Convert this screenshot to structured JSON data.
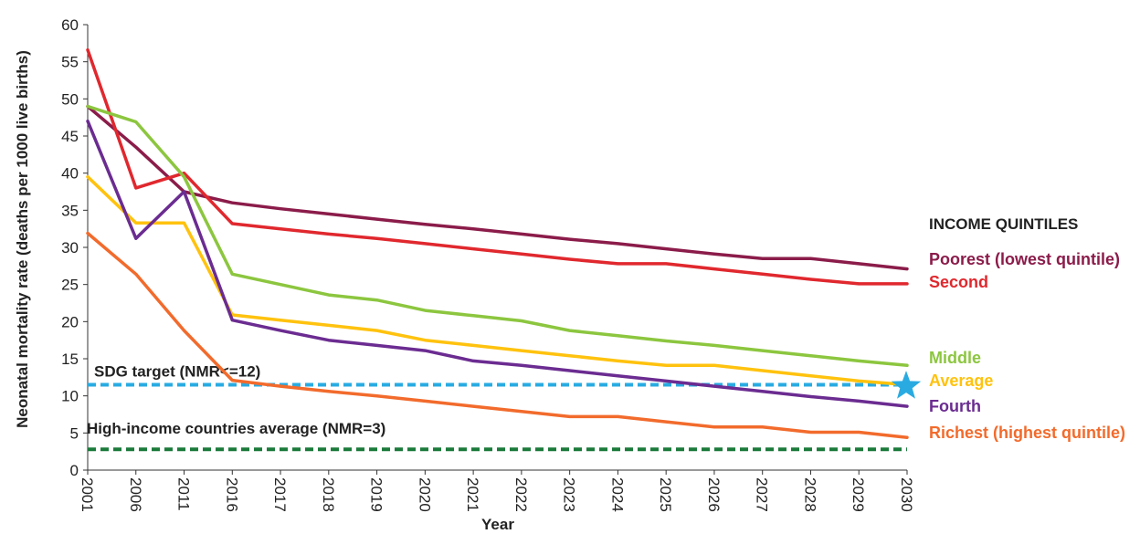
{
  "chart_data": {
    "type": "line",
    "xlabel": "Year",
    "ylabel": "Neonatal mortality rate (deaths per 1000 live births)",
    "ylim": [
      0,
      60
    ],
    "yticks": [
      0,
      5,
      10,
      15,
      20,
      25,
      30,
      35,
      40,
      45,
      50,
      55,
      60
    ],
    "categories": [
      "2001",
      "2006",
      "2011",
      "2016",
      "2017",
      "2018",
      "2019",
      "2020",
      "2021",
      "2022",
      "2023",
      "2024",
      "2025",
      "2026",
      "2027",
      "2028",
      "2029",
      "2030"
    ],
    "grid": false,
    "legend_title": "INCOME QUINTILES",
    "legend_placement": "right",
    "series": [
      {
        "name": "Poorest (lowest quintile)",
        "color": "#8b1c4a",
        "values": [
          49,
          43.5,
          37.5,
          36,
          35.2,
          34.5,
          33.8,
          33.1,
          32.5,
          31.8,
          31.1,
          30.5,
          29.8,
          29.1,
          28.5,
          28.5,
          27.8,
          27.1
        ]
      },
      {
        "name": "Second",
        "color": "#e0282e",
        "values": [
          56.6,
          38,
          40,
          33.2,
          32.5,
          31.8,
          31.2,
          30.5,
          29.8,
          29.1,
          28.4,
          27.8,
          27.8,
          27.1,
          26.4,
          25.7,
          25.1,
          25.1
        ]
      },
      {
        "name": "Middle",
        "color": "#8cc63f",
        "values": [
          49,
          46.9,
          39.5,
          26.4,
          25,
          23.6,
          22.9,
          21.5,
          20.8,
          20.1,
          18.8,
          18.1,
          17.4,
          16.8,
          16.1,
          15.4,
          14.7,
          14.1
        ]
      },
      {
        "name": "Average",
        "color": "#ffc20e",
        "values": [
          39.5,
          33.3,
          33.3,
          20.9,
          20.2,
          19.5,
          18.8,
          17.5,
          16.8,
          16.1,
          15.4,
          14.7,
          14.1,
          14.1,
          13.4,
          12.7,
          12,
          11.5
        ]
      },
      {
        "name": "Fourth",
        "color": "#6b2c91",
        "values": [
          47,
          31.2,
          37.5,
          20.2,
          18.8,
          17.5,
          16.8,
          16.1,
          14.7,
          14.1,
          13.4,
          12.7,
          12,
          11.3,
          10.6,
          9.9,
          9.3,
          8.6
        ]
      },
      {
        "name": "Richest (highest quintile)",
        "color": "#f26b2c",
        "values": [
          31.9,
          26.4,
          18.8,
          12.1,
          11.3,
          10.6,
          10,
          9.3,
          8.6,
          7.9,
          7.2,
          7.2,
          6.5,
          5.8,
          5.8,
          5.1,
          5.1,
          4.4
        ]
      }
    ],
    "reference_lines": [
      {
        "label": "SDG target (NMR<=12)",
        "value": 11.5,
        "color": "#29abe2",
        "style": "dashed"
      },
      {
        "label": "High-income countries average (NMR=3)",
        "value": 2.8,
        "color": "#1a7a3a",
        "style": "dashed"
      }
    ],
    "marker": {
      "name": "star-icon",
      "category": "2030",
      "value": 11.3,
      "color": "#29abe2"
    }
  }
}
